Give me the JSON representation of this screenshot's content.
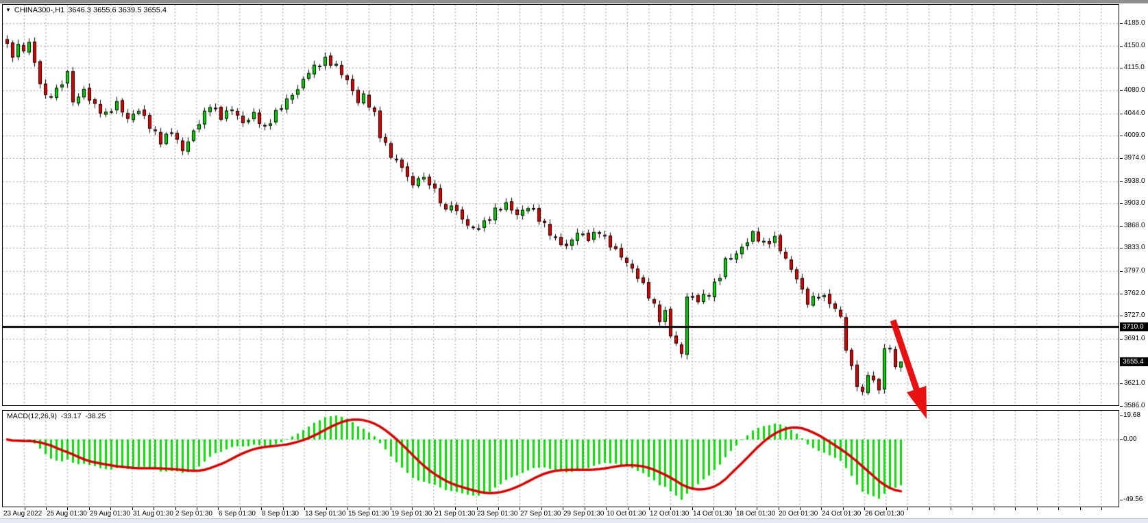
{
  "header": {
    "symbol_period": "CHINA300-,H1",
    "ohlc": "3646.3 3655.6 3639.5 3655.4"
  },
  "colors": {
    "candle_up": "#00d000",
    "candle_down": "#df0000",
    "candle_outline": "#000000",
    "wick": "#000000",
    "macd_histogram": "#00dc00",
    "macd_signal": "#d40000",
    "grid": "#999999",
    "hline": "#000000",
    "marker_bg": "#000000",
    "marker_fg": "#ffffff",
    "arrow": "#e81010"
  },
  "chart_data": {
    "type": "candlestick",
    "title": "CHINA300- H1 candlestick chart with MACD",
    "price_axis": {
      "ticks": [
        4185.0,
        4150.0,
        4115.0,
        4080.0,
        4044.0,
        4009.0,
        3974.0,
        3938.0,
        3903.0,
        3868.0,
        3833.0,
        3797.0,
        3762.0,
        3727.0,
        3691.0,
        3621.0,
        3586.0
      ],
      "hidden_tick_under_marker": 3656.0,
      "visible_max": 4199.0,
      "visible_min": 3579.0
    },
    "time_axis": {
      "labels": [
        "23 Aug 2022",
        "25 Aug 01:30",
        "29 Aug 01:30",
        "31 Aug 01:30",
        "2 Sep 01:30",
        "6 Sep 01:30",
        "8 Sep 01:30",
        "13 Sep 01:30",
        "15 Sep 01:30",
        "19 Sep 01:30",
        "21 Sep 01:30",
        "23 Sep 01:30",
        "27 Sep 01:30",
        "29 Sep 01:30",
        "10 Oct 01:30",
        "12 Oct 01:30",
        "14 Oct 01:30",
        "18 Oct 01:30",
        "20 Oct 01:30",
        "24 Oct 01:30",
        "26 Oct 01:30"
      ]
    },
    "series": {
      "bar_count": 164,
      "close_anchors": [
        [
          0,
          4150
        ],
        [
          1,
          4133
        ],
        [
          2,
          4152
        ],
        [
          3,
          4140
        ],
        [
          4,
          4158
        ],
        [
          5,
          4120
        ],
        [
          7,
          4068
        ],
        [
          9,
          4080
        ],
        [
          10,
          4092
        ],
        [
          11,
          4108
        ],
        [
          12,
          4062
        ],
        [
          14,
          4080
        ],
        [
          16,
          4055
        ],
        [
          18,
          4042
        ],
        [
          20,
          4060
        ],
        [
          22,
          4035
        ],
        [
          24,
          4050
        ],
        [
          26,
          4024
        ],
        [
          28,
          4000
        ],
        [
          30,
          4016
        ],
        [
          32,
          3986
        ],
        [
          34,
          4015
        ],
        [
          35,
          4030
        ],
        [
          37,
          4058
        ],
        [
          39,
          4038
        ],
        [
          41,
          4052
        ],
        [
          43,
          4028
        ],
        [
          45,
          4043
        ],
        [
          47,
          4020
        ],
        [
          49,
          4045
        ],
        [
          51,
          4065
        ],
        [
          53,
          4082
        ],
        [
          55,
          4110
        ],
        [
          57,
          4122
        ],
        [
          58,
          4128
        ],
        [
          60,
          4118
        ],
        [
          62,
          4095
        ],
        [
          64,
          4062
        ],
        [
          65,
          4072
        ],
        [
          67,
          4042
        ],
        [
          68,
          4010
        ],
        [
          70,
          3978
        ],
        [
          72,
          3960
        ],
        [
          74,
          3930
        ],
        [
          75,
          3945
        ],
        [
          77,
          3936
        ],
        [
          79,
          3908
        ],
        [
          80,
          3890
        ],
        [
          81,
          3902
        ],
        [
          83,
          3878
        ],
        [
          85,
          3862
        ],
        [
          87,
          3872
        ],
        [
          89,
          3892
        ],
        [
          91,
          3902
        ],
        [
          93,
          3885
        ],
        [
          95,
          3898
        ],
        [
          96,
          3890
        ],
        [
          98,
          3868
        ],
        [
          100,
          3846
        ],
        [
          102,
          3835
        ],
        [
          104,
          3858
        ],
        [
          106,
          3848
        ],
        [
          108,
          3860
        ],
        [
          110,
          3838
        ],
        [
          112,
          3820
        ],
        [
          114,
          3800
        ],
        [
          116,
          3775
        ],
        [
          118,
          3742
        ],
        [
          119,
          3722
        ],
        [
          120,
          3732
        ],
        [
          121,
          3698
        ],
        [
          122,
          3682
        ],
        [
          123,
          3668
        ],
        [
          124,
          3758
        ],
        [
          126,
          3752
        ],
        [
          128,
          3762
        ],
        [
          130,
          3790
        ],
        [
          131,
          3814
        ],
        [
          133,
          3824
        ],
        [
          135,
          3844
        ],
        [
          136,
          3856
        ],
        [
          138,
          3840
        ],
        [
          140,
          3848
        ],
        [
          142,
          3815
        ],
        [
          144,
          3785
        ],
        [
          146,
          3748
        ],
        [
          148,
          3760
        ],
        [
          150,
          3750
        ],
        [
          151,
          3735
        ],
        [
          152,
          3728
        ],
        [
          153,
          3672
        ],
        [
          154,
          3648
        ],
        [
          155,
          3618
        ],
        [
          156,
          3605
        ],
        [
          157,
          3638
        ],
        [
          158,
          3622
        ],
        [
          159,
          3615
        ],
        [
          160,
          3672
        ],
        [
          161,
          3680
        ],
        [
          162,
          3645
        ],
        [
          163,
          3655.4
        ]
      ],
      "last_bar_ohlc": {
        "open": 3646.3,
        "high": 3655.6,
        "low": 3639.5,
        "close": 3655.4
      }
    },
    "horizontal_line": {
      "price": 3710.0,
      "label": "3710.0"
    },
    "price_marker": {
      "price": 3655.4,
      "label": "3655.4"
    },
    "indicator": {
      "name": "MACD",
      "label": "MACD(12,26,9)",
      "fast": 12,
      "slow": 26,
      "signal": 9,
      "macd_value": "-33.17",
      "signal_value": "-38.25",
      "axis_ticks": [
        {
          "v": 19.68,
          "label": "19.68"
        },
        {
          "v": 0,
          "label": "0.00"
        },
        {
          "v": -49.56,
          "label": "-49.56"
        }
      ]
    },
    "annotation": {
      "type": "arrow-down",
      "from": [
        1303,
        468
      ],
      "to": [
        1352,
        612
      ]
    }
  }
}
